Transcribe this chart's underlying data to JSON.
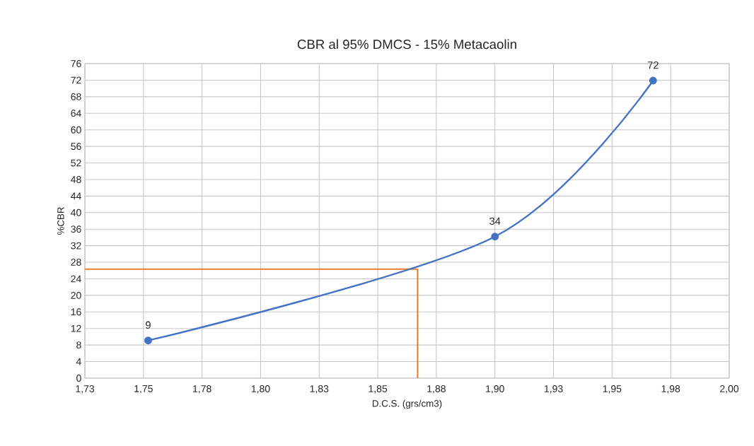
{
  "chart_data": {
    "type": "line",
    "title": "CBR al 95% DMCS - 15% Metacaolin",
    "xlabel": "D.C.S. (grs/cm3)",
    "ylabel": "%CBR",
    "x": [
      1.752,
      1.9,
      1.9675
    ],
    "values": [
      9.1,
      34.2,
      71.9
    ],
    "value_labels": [
      "9",
      "34",
      "72"
    ],
    "color": "#4472c4",
    "marker": "circle",
    "line_style": "solid",
    "xlim": [
      1.725,
      2.0
    ],
    "xticks": [
      {
        "value": 1.725,
        "label": "1,73"
      },
      {
        "value": 1.75,
        "label": "1,75"
      },
      {
        "value": 1.775,
        "label": "1,78"
      },
      {
        "value": 1.8,
        "label": "1,80"
      },
      {
        "value": 1.825,
        "label": "1,83"
      },
      {
        "value": 1.85,
        "label": "1,85"
      },
      {
        "value": 1.875,
        "label": "1,88"
      },
      {
        "value": 1.9,
        "label": "1,90"
      },
      {
        "value": 1.925,
        "label": "1,93"
      },
      {
        "value": 1.95,
        "label": "1,95"
      },
      {
        "value": 1.975,
        "label": "1,98"
      },
      {
        "value": 2.0,
        "label": "2,00"
      }
    ],
    "ylim": [
      0,
      76
    ],
    "yticks": [
      0,
      4,
      8,
      12,
      16,
      20,
      24,
      28,
      32,
      36,
      40,
      44,
      48,
      52,
      56,
      60,
      64,
      68,
      72,
      76
    ],
    "grid": true,
    "ref_lines": [
      {
        "axis": "y",
        "value": 26.35,
        "color": "#ed7d31"
      },
      {
        "axis": "x",
        "value": 1.867,
        "color": "#ed7d31"
      }
    ]
  }
}
